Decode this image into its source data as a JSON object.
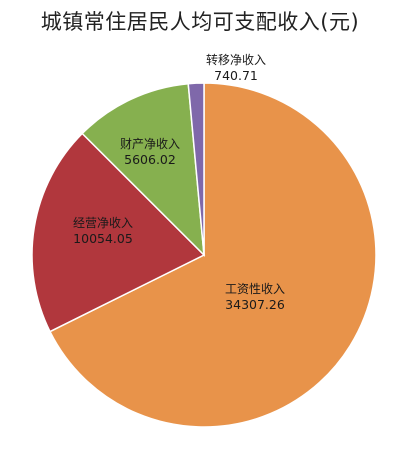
{
  "chart_data": {
    "type": "pie",
    "title": "城镇常住居民人均可支配收入(元)",
    "slices": [
      {
        "label": "工资性收入",
        "value": 34307.26,
        "value_text": "34307.26",
        "color": "#E8934A"
      },
      {
        "label": "经营净收入",
        "value": 10054.05,
        "value_text": "10054.05",
        "color": "#B1373D"
      },
      {
        "label": "财产净收入",
        "value": 5606.02,
        "value_text": "5606.02",
        "color": "#86B04F"
      },
      {
        "label": "转移净收入",
        "value": 740.71,
        "value_text": "740.71",
        "color": "#7F68AA"
      }
    ],
    "start_clockwise_from": "top"
  }
}
